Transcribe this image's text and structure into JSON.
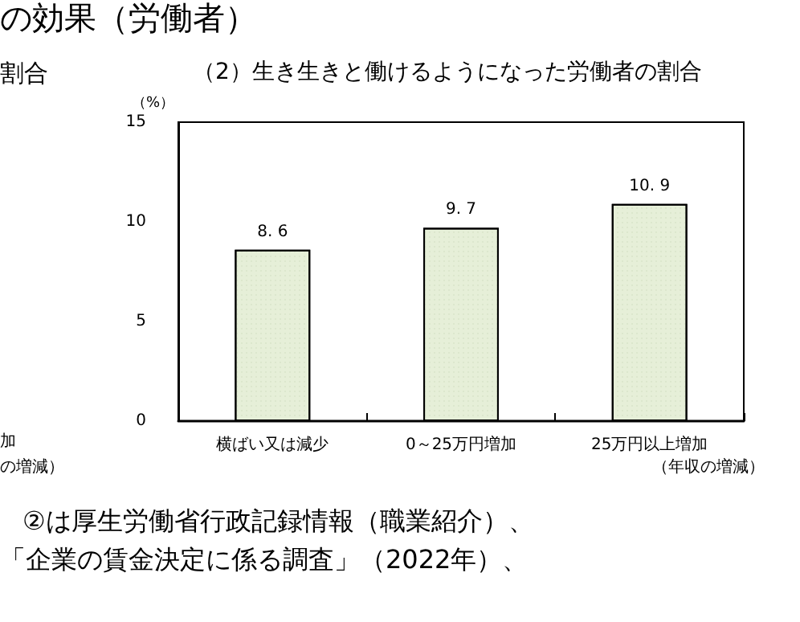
{
  "chart_data": {
    "type": "bar",
    "title": "の効果（労働者）",
    "subtitle": "（2）生き生きと働けるようになった労働者の割合",
    "xlabel": "（年収の増減）",
    "ylabel": "（%）",
    "categories": [
      "横ばい又は減少",
      "0～25万円増加",
      "25万円以上増加"
    ],
    "values": [
      8.6,
      9.7,
      10.9
    ],
    "color": "#e6efd8",
    "data_labels": true,
    "ylim": [
      0,
      15
    ],
    "yticks": [
      0,
      5,
      10,
      15
    ],
    "grid": false,
    "annotations": [
      "割合",
      "加",
      "の増減）",
      "②は厚生労働省行政記録情報（職業紹介）、",
      "「企業の賃金決定に係る調査」（2022年）、"
    ]
  }
}
